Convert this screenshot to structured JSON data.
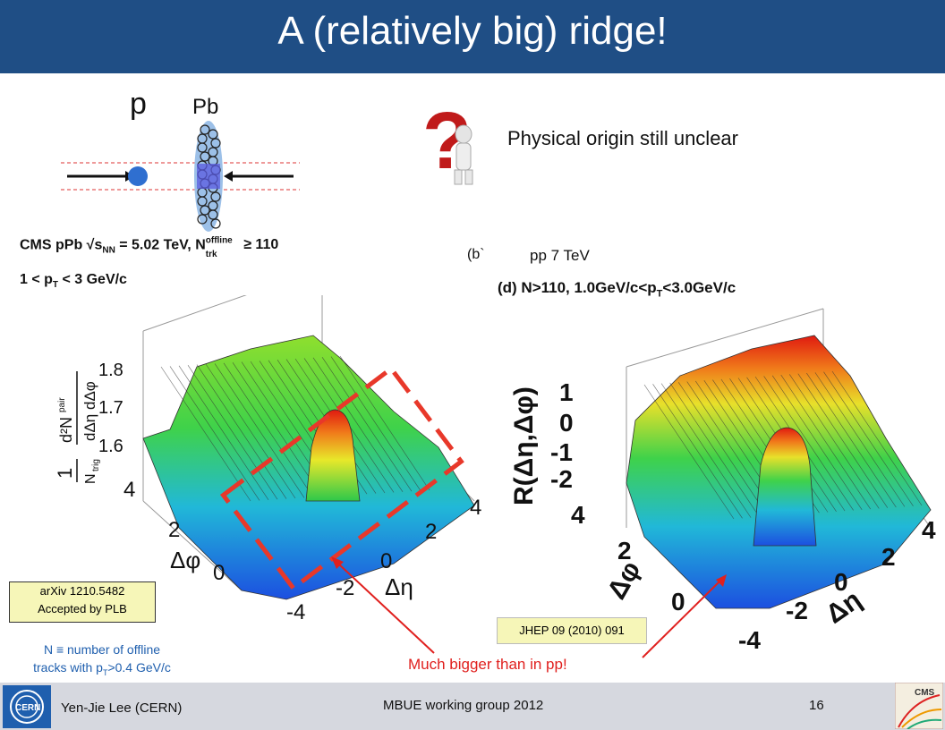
{
  "title": "A (relatively big) ridge!",
  "diagram": {
    "p_label": "p",
    "pb_label": "Pb"
  },
  "question_text": "Physical origin still unclear",
  "left_plot": {
    "header_line1": "CMS pPb √s",
    "header_sub": "NN",
    "header_line1b": " = 5.02 TeV, N",
    "header_sup": "offline",
    "header_sub2": "trk",
    "header_line1c": " ≥ 110",
    "header_line2": "1 < p",
    "header_line2_sub": "T",
    "header_line2b": " < 3 GeV/c",
    "zticks": [
      "1.8",
      "1.7",
      "1.6"
    ],
    "phi_ticks": [
      "4",
      "2",
      "0"
    ],
    "eta_ticks": [
      "-4",
      "-2",
      "0",
      "2",
      "4"
    ],
    "phi_label": "Δφ",
    "eta_label": "Δη"
  },
  "right_plot": {
    "tag": "(b`",
    "subtitle": "pp 7 TeV",
    "header": "(d) N>110, 1.0GeV/c<p",
    "header_sub": "T",
    "header_b": "<3.0GeV/c",
    "zlabel": "R(Δη,Δφ)",
    "zticks": [
      "1",
      "0",
      "-1",
      "-2"
    ],
    "phi_ticks": [
      "4",
      "2",
      "0"
    ],
    "eta_ticks": [
      "-4",
      "-2",
      "0",
      "2",
      "4"
    ],
    "phi_label": "Δφ",
    "eta_label": "Δη"
  },
  "ref_left": {
    "line1": "arXiv 1210.5482",
    "line2": "Accepted by PLB",
    "color": "#f6f6b8"
  },
  "note": {
    "line1": "N ≡ number of offline",
    "line2a": "tracks with p",
    "line2_sub": "T",
    "line2b": ">0.4 GeV/c",
    "color": "#1f5fae"
  },
  "ref_right": {
    "text": "JHEP 09 (2010) 091",
    "color": "#f6f6b8"
  },
  "annotation": {
    "text": "Much bigger than in pp!",
    "color": "#e0201e"
  },
  "footer": {
    "author": "Yen-Jie Lee (CERN)",
    "meeting": "MBUE working group 2012",
    "page": "16"
  },
  "logos": {
    "cern": "CERN",
    "cms": "CMS"
  }
}
